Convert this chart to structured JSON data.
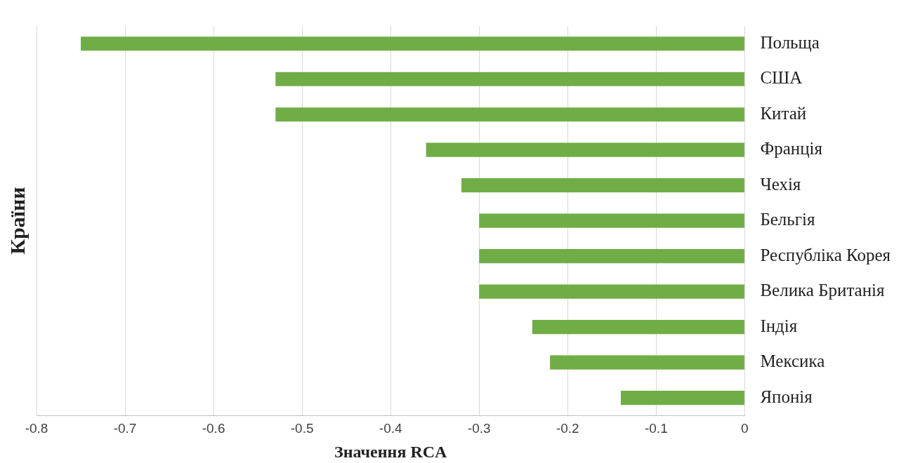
{
  "chart_data": {
    "type": "bar",
    "orientation": "horizontal",
    "xlabel": "Значення RCA",
    "ylabel": "Країни",
    "categories": [
      "Польща",
      "США",
      "Китай",
      "Франція",
      "Чехія",
      "Бельгія",
      "Республіка Корея",
      "Велика Британія",
      "Індія",
      "Мексика",
      "Японія"
    ],
    "values": [
      -0.75,
      -0.53,
      -0.53,
      -0.36,
      -0.32,
      -0.3,
      -0.3,
      -0.3,
      -0.24,
      -0.22,
      -0.14
    ],
    "color": "#70ad47",
    "xlim": [
      -0.8,
      0
    ],
    "xticks": [
      -0.8,
      -0.7,
      -0.6,
      -0.5,
      -0.4,
      -0.3,
      -0.2,
      -0.1,
      0
    ],
    "grid": "x"
  }
}
